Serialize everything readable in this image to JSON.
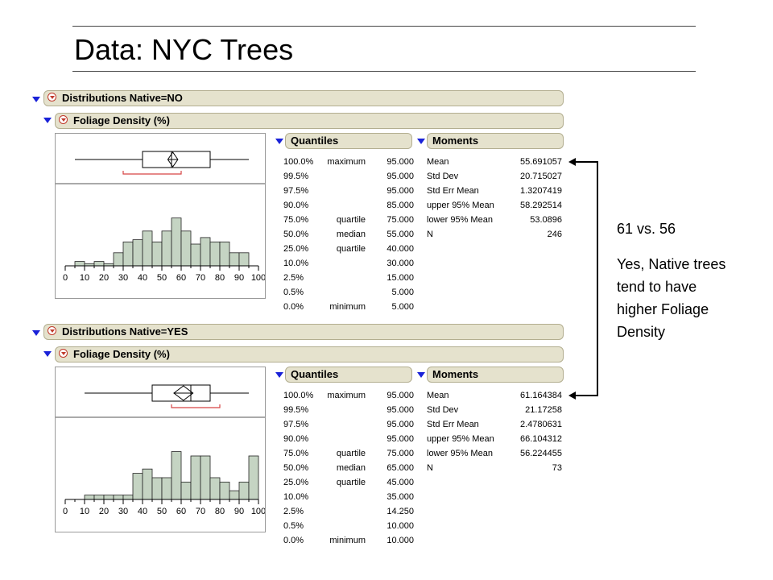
{
  "title": "Data: NYC Trees",
  "note": {
    "comparison": "61 vs. 56",
    "conclusion_lines": [
      "Yes, Native trees",
      "tend to have",
      "higher Foliage",
      "Density"
    ]
  },
  "colors": {
    "header_bg": "#e5e2cd",
    "disclosure": "#1a22d8",
    "bar_fill": "#c5d4c3",
    "box_mark": "#d64545"
  },
  "sections": [
    {
      "dist_title": "Distributions Native=NO",
      "var_title": "Foliage Density (%)",
      "quantiles_title": "Quantiles",
      "moments_title": "Moments",
      "quantiles": [
        {
          "pct": "100.0%",
          "label": "maximum",
          "value": "95.000"
        },
        {
          "pct": "99.5%",
          "label": "",
          "value": "95.000"
        },
        {
          "pct": "97.5%",
          "label": "",
          "value": "95.000"
        },
        {
          "pct": "90.0%",
          "label": "",
          "value": "85.000"
        },
        {
          "pct": "75.0%",
          "label": "quartile",
          "value": "75.000"
        },
        {
          "pct": "50.0%",
          "label": "median",
          "value": "55.000"
        },
        {
          "pct": "25.0%",
          "label": "quartile",
          "value": "40.000"
        },
        {
          "pct": "10.0%",
          "label": "",
          "value": "30.000"
        },
        {
          "pct": "2.5%",
          "label": "",
          "value": "15.000"
        },
        {
          "pct": "0.5%",
          "label": "",
          "value": "5.000"
        },
        {
          "pct": "0.0%",
          "label": "minimum",
          "value": "5.000"
        }
      ],
      "moments": [
        {
          "label": "Mean",
          "value": "55.691057"
        },
        {
          "label": "Std Dev",
          "value": "20.715027"
        },
        {
          "label": "Std Err Mean",
          "value": "1.3207419"
        },
        {
          "label": "upper 95% Mean",
          "value": "58.292514"
        },
        {
          "label": "lower 95% Mean",
          "value": "53.0896"
        },
        {
          "label": "N",
          "value": "246"
        }
      ]
    },
    {
      "dist_title": "Distributions Native=YES",
      "var_title": "Foliage Density (%)",
      "quantiles_title": "Quantiles",
      "moments_title": "Moments",
      "quantiles": [
        {
          "pct": "100.0%",
          "label": "maximum",
          "value": "95.000"
        },
        {
          "pct": "99.5%",
          "label": "",
          "value": "95.000"
        },
        {
          "pct": "97.5%",
          "label": "",
          "value": "95.000"
        },
        {
          "pct": "90.0%",
          "label": "",
          "value": "95.000"
        },
        {
          "pct": "75.0%",
          "label": "quartile",
          "value": "75.000"
        },
        {
          "pct": "50.0%",
          "label": "median",
          "value": "65.000"
        },
        {
          "pct": "25.0%",
          "label": "quartile",
          "value": "45.000"
        },
        {
          "pct": "10.0%",
          "label": "",
          "value": "35.000"
        },
        {
          "pct": "2.5%",
          "label": "",
          "value": "14.250"
        },
        {
          "pct": "0.5%",
          "label": "",
          "value": "10.000"
        },
        {
          "pct": "0.0%",
          "label": "minimum",
          "value": "10.000"
        }
      ],
      "moments": [
        {
          "label": "Mean",
          "value": "61.164384"
        },
        {
          "label": "Std Dev",
          "value": "21.17258"
        },
        {
          "label": "Std Err Mean",
          "value": "2.4780631"
        },
        {
          "label": "upper 95% Mean",
          "value": "66.104312"
        },
        {
          "label": "lower 95% Mean",
          "value": "56.224455"
        },
        {
          "label": "N",
          "value": "73"
        }
      ]
    }
  ],
  "chart_data": [
    {
      "type": "bar",
      "title": "Native=NO",
      "x_ticks": [
        "0",
        "10",
        "20",
        "30",
        "40",
        "50",
        "60",
        "70",
        "80",
        "90",
        "100"
      ],
      "xlim": [
        0,
        100
      ],
      "bin_width": 5,
      "bins": [
        {
          "x0": 5,
          "count": 1
        },
        {
          "x0": 10,
          "count": 0.5
        },
        {
          "x0": 15,
          "count": 1
        },
        {
          "x0": 20,
          "count": 0.5
        },
        {
          "x0": 25,
          "count": 3
        },
        {
          "x0": 30,
          "count": 5.5
        },
        {
          "x0": 35,
          "count": 6
        },
        {
          "x0": 40,
          "count": 8
        },
        {
          "x0": 45,
          "count": 5.5
        },
        {
          "x0": 50,
          "count": 8
        },
        {
          "x0": 55,
          "count": 11
        },
        {
          "x0": 60,
          "count": 8
        },
        {
          "x0": 65,
          "count": 5
        },
        {
          "x0": 70,
          "count": 6.5
        },
        {
          "x0": 75,
          "count": 5.5
        },
        {
          "x0": 80,
          "count": 5.5
        },
        {
          "x0": 85,
          "count": 3
        },
        {
          "x0": 90,
          "count": 3
        }
      ],
      "box": {
        "min": 5,
        "q1": 40,
        "median": 55,
        "q3": 75,
        "max": 95,
        "mean": 55.69,
        "ci": [
          53.09,
          58.29
        ],
        "shortest_half": [
          30,
          60
        ]
      }
    },
    {
      "type": "bar",
      "title": "Native=YES",
      "x_ticks": [
        "0",
        "10",
        "20",
        "30",
        "40",
        "50",
        "60",
        "70",
        "80",
        "90",
        "100"
      ],
      "xlim": [
        0,
        100
      ],
      "bin_width": 5,
      "bins": [
        {
          "x0": 10,
          "count": 1
        },
        {
          "x0": 15,
          "count": 1
        },
        {
          "x0": 20,
          "count": 1
        },
        {
          "x0": 25,
          "count": 1
        },
        {
          "x0": 30,
          "count": 1
        },
        {
          "x0": 35,
          "count": 6
        },
        {
          "x0": 40,
          "count": 7
        },
        {
          "x0": 45,
          "count": 5
        },
        {
          "x0": 50,
          "count": 5
        },
        {
          "x0": 55,
          "count": 11
        },
        {
          "x0": 60,
          "count": 4
        },
        {
          "x0": 65,
          "count": 10
        },
        {
          "x0": 70,
          "count": 10
        },
        {
          "x0": 75,
          "count": 5
        },
        {
          "x0": 80,
          "count": 4
        },
        {
          "x0": 85,
          "count": 2
        },
        {
          "x0": 90,
          "count": 4
        },
        {
          "x0": 95,
          "count": 10
        }
      ],
      "box": {
        "min": 10,
        "q1": 45,
        "median": 65,
        "q3": 75,
        "max": 95,
        "mean": 61.16,
        "ci": [
          56.22,
          66.1
        ],
        "shortest_half": [
          55,
          80
        ]
      }
    }
  ]
}
